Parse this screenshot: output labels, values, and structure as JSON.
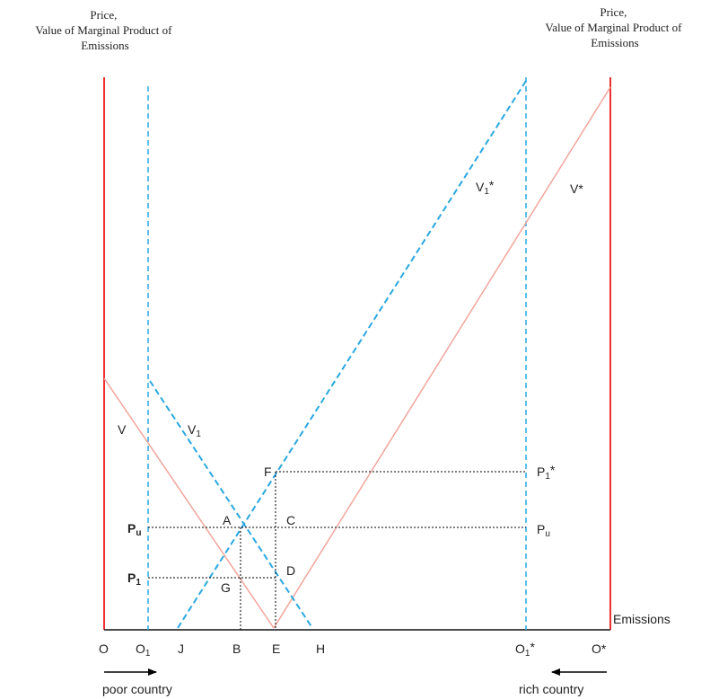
{
  "y_axis_left_label": [
    "Price,",
    "Value of Marginal Product of",
    "Emissions"
  ],
  "y_axis_right_label": [
    "Price,",
    "Value of Marginal Product of",
    "Emissions"
  ],
  "x_axis_label": "Emissions",
  "curves": {
    "V": "V",
    "V1_main": "V",
    "V1_sub": "1",
    "V1star_main": "V",
    "V1star_sub": "1",
    "V1star_sup": "*",
    "Vstar": "V*"
  },
  "points": {
    "A": "A",
    "C": "C",
    "D": "D",
    "F": "F",
    "G": "G"
  },
  "price_left": {
    "Pu_main": "P",
    "Pu_sub": "u",
    "P1_main": "P",
    "P1_sub": "1"
  },
  "price_right": {
    "P1star_main": "P",
    "P1star_sub": "1",
    "P1star_sup": "*",
    "Pu_main": "P",
    "Pu_sub": "u"
  },
  "x_ticks": {
    "O": "O",
    "O1_main": "O",
    "O1_sub": "1",
    "J": "J",
    "B": "B",
    "E": "E",
    "H": "H",
    "O1star_main": "O",
    "O1star_sub": "1",
    "O1star_sup": "*",
    "Ostar": "O*"
  },
  "arrows": {
    "left": "poor country",
    "right": "rich country"
  },
  "colors": {
    "axis_red": "#ee3030",
    "curve_pink": "#f2a49c",
    "dashed_blue": "#2aa8e0",
    "dotted_black": "#000000"
  }
}
